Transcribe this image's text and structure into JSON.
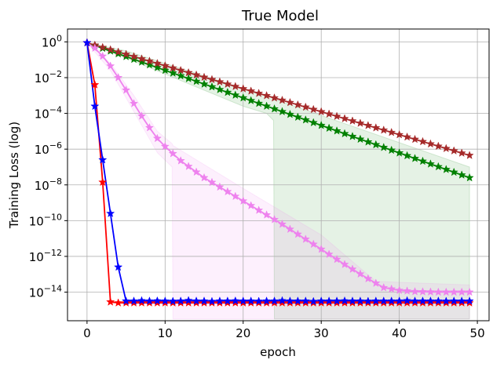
{
  "chart_data": {
    "type": "line",
    "title": "True Model",
    "xlabel": "epoch",
    "ylabel": "Training Loss (log)",
    "xlim": [
      -2.5,
      51.5
    ],
    "ylim": [
      -15.6,
      0.72
    ],
    "y_scale": "log10",
    "grid": true,
    "x_ticks": [
      0,
      10,
      20,
      30,
      40,
      50
    ],
    "y_ticks": [
      {
        "exp": 0,
        "base": "10",
        "sup": "0"
      },
      {
        "exp": -2,
        "base": "10",
        "sup": "−2"
      },
      {
        "exp": -4,
        "base": "10",
        "sup": "−4"
      },
      {
        "exp": -6,
        "base": "10",
        "sup": "−6"
      },
      {
        "exp": -8,
        "base": "10",
        "sup": "−8"
      },
      {
        "exp": -10,
        "base": "10",
        "sup": "−10"
      },
      {
        "exp": -12,
        "base": "10",
        "sup": "−12"
      },
      {
        "exp": -14,
        "base": "10",
        "sup": "−14"
      }
    ],
    "series": [
      {
        "color": "#008000",
        "marker": "star",
        "x": [
          0,
          49
        ],
        "log10_y": [
          -0.05,
          -7.6
        ],
        "band": {
          "fill": "#008000",
          "opacity": 0.1,
          "x": [
            0,
            5,
            10,
            15,
            20,
            23,
            23.9,
            24,
            49
          ],
          "lower": [
            -0.05,
            -0.9,
            -1.8,
            -2.7,
            -3.6,
            -4.0,
            -4.4,
            -15.5,
            -15.5
          ],
          "upper": [
            -0.05,
            -0.5,
            -1.2,
            -1.9,
            -2.6,
            -3.0,
            -3.1,
            -3.2,
            -7.0
          ]
        }
      },
      {
        "color": "#a52a2a",
        "marker": "star",
        "x": [
          0,
          49
        ],
        "log10_y": [
          -0.05,
          -6.35
        ]
      },
      {
        "color": "#ee82ee",
        "marker": "star",
        "x": [
          0,
          1,
          2,
          3,
          4,
          5,
          6,
          7,
          8,
          9,
          10,
          12,
          15,
          20,
          25,
          30,
          33,
          36,
          38,
          40,
          42,
          45,
          49
        ],
        "log10_y": [
          -0.05,
          -0.35,
          -0.8,
          -1.35,
          -2.0,
          -2.7,
          -3.45,
          -4.15,
          -4.8,
          -5.4,
          -5.85,
          -6.65,
          -7.6,
          -8.9,
          -10.2,
          -11.6,
          -12.45,
          -13.25,
          -13.75,
          -13.9,
          -13.97,
          -14.0,
          -14.0
        ],
        "band": {
          "fill": "#ee82ee",
          "opacity": 0.12,
          "x": [
            0,
            3,
            6,
            9,
            10.9,
            11,
            20,
            30,
            37,
            49
          ],
          "lower": [
            -0.05,
            -1.6,
            -3.9,
            -6.2,
            -7.0,
            -15.5,
            -15.5,
            -15.5,
            -15.5,
            -15.5
          ],
          "upper": [
            -0.05,
            -1.2,
            -3.0,
            -5.0,
            -5.7,
            -5.8,
            -8.2,
            -10.8,
            -13.4,
            -13.6
          ]
        }
      },
      {
        "color": "#ff0000",
        "marker": "star",
        "x": [
          0,
          1,
          2,
          3,
          4,
          5,
          6,
          7,
          8,
          9,
          10,
          11,
          12,
          13,
          14,
          15,
          16,
          17,
          18,
          19,
          20,
          21,
          22,
          23,
          24,
          25,
          26,
          27,
          28,
          29,
          30,
          31,
          32,
          33,
          34,
          35,
          36,
          37,
          38,
          39,
          40,
          41,
          42,
          43,
          44,
          45,
          46,
          47,
          48,
          49
        ],
        "log10_y": [
          -0.05,
          -2.4,
          -7.85,
          -14.55,
          -14.6,
          -14.6,
          -14.6,
          -14.6,
          -14.6,
          -14.6,
          -14.6,
          -14.6,
          -14.6,
          -14.6,
          -14.6,
          -14.6,
          -14.6,
          -14.6,
          -14.6,
          -14.6,
          -14.6,
          -14.6,
          -14.6,
          -14.6,
          -14.6,
          -14.6,
          -14.6,
          -14.6,
          -14.6,
          -14.6,
          -14.6,
          -14.6,
          -14.6,
          -14.6,
          -14.6,
          -14.6,
          -14.6,
          -14.6,
          -14.6,
          -14.6,
          -14.6,
          -14.6,
          -14.6,
          -14.6,
          -14.6,
          -14.6,
          -14.6,
          -14.6,
          -14.6,
          -14.6
        ]
      },
      {
        "color": "#0000ff",
        "marker": "star",
        "x": [
          0,
          1,
          2,
          3,
          4,
          5,
          6,
          7,
          8,
          9,
          10,
          11,
          12,
          13,
          14,
          15,
          16,
          17,
          18,
          19,
          20,
          21,
          22,
          23,
          24,
          25,
          26,
          27,
          28,
          29,
          30,
          31,
          32,
          33,
          34,
          35,
          36,
          37,
          38,
          39,
          40,
          41,
          42,
          43,
          44,
          45,
          46,
          47,
          48,
          49
        ],
        "log10_y": [
          -0.05,
          -3.6,
          -6.6,
          -9.6,
          -12.6,
          -14.5,
          -14.5,
          -14.48,
          -14.5,
          -14.49,
          -14.5,
          -14.51,
          -14.5,
          -14.47,
          -14.5,
          -14.5,
          -14.52,
          -14.5,
          -14.5,
          -14.49,
          -14.5,
          -14.5,
          -14.51,
          -14.5,
          -14.5,
          -14.48,
          -14.5,
          -14.5,
          -14.5,
          -14.52,
          -14.5,
          -14.5,
          -14.5,
          -14.49,
          -14.5,
          -14.5,
          -14.51,
          -14.5,
          -14.5,
          -14.5,
          -14.5,
          -14.48,
          -14.5,
          -14.5,
          -14.5,
          -14.5,
          -14.51,
          -14.5,
          -14.5,
          -14.5
        ]
      }
    ]
  }
}
